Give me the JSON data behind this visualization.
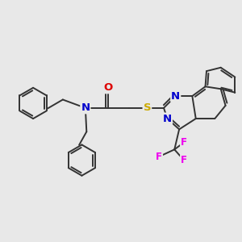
{
  "bg_color": "#e8e8e8",
  "bond_color": "#333333",
  "bond_width": 1.4,
  "atom_colors": {
    "N": "#0000cc",
    "O": "#dd0000",
    "S": "#ccaa00",
    "F": "#ee00ee",
    "C": "#333333"
  },
  "font_size": 8.5,
  "fig_size": [
    3.0,
    3.0
  ],
  "dpi": 100
}
